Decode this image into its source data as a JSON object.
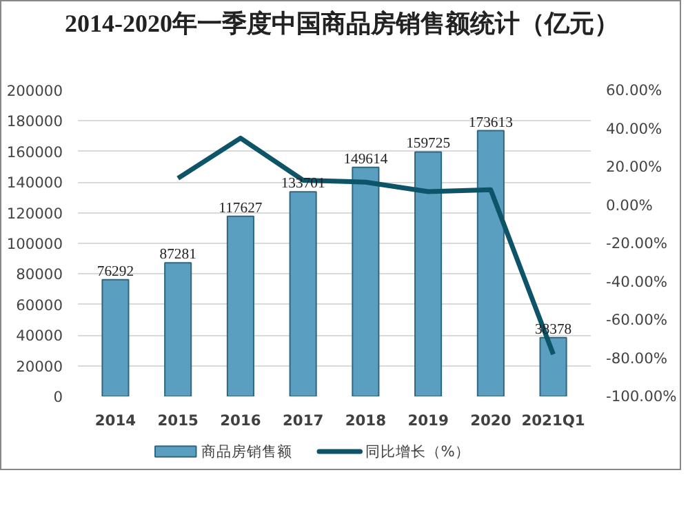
{
  "chart_data": {
    "type": "bar",
    "title": "2014-2020年一季度中国商品房销售额统计（亿元）",
    "categories": [
      "2014",
      "2015",
      "2016",
      "2017",
      "2018",
      "2019",
      "2020",
      "2021Q1"
    ],
    "series": [
      {
        "name": "商品房销售额",
        "color": "#5b9fc0",
        "values": [
          76292,
          87281,
          117627,
          133701,
          149614,
          159725,
          173613,
          38378
        ],
        "value_labels": [
          "76292",
          "87281",
          "117627",
          "133701",
          "149614",
          "159725",
          "173613",
          "38378"
        ]
      },
      {
        "name": "同比增长（%）",
        "color": "#0e5468",
        "type": "line",
        "axis": "y2",
        "values": [
          null,
          14,
          35,
          13,
          12,
          7,
          8,
          -78
        ]
      }
    ],
    "ylim": [
      0,
      200000
    ],
    "yticks": [
      0,
      20000,
      40000,
      60000,
      80000,
      100000,
      120000,
      140000,
      160000,
      180000,
      200000
    ],
    "y2lim": [
      -100,
      60
    ],
    "y2ticks": [
      {
        "value": -100,
        "label": "-100.00%"
      },
      {
        "value": -80,
        "label": "-80.00%"
      },
      {
        "value": -60,
        "label": "-60.00%"
      },
      {
        "value": -40,
        "label": "-40.00%"
      },
      {
        "value": -20,
        "label": "-20.00%"
      },
      {
        "value": 0,
        "label": "0.00%"
      },
      {
        "value": 20,
        "label": "20.00%"
      },
      {
        "value": 40,
        "label": "40.00%"
      },
      {
        "value": 60,
        "label": "60.00%"
      }
    ],
    "grid": "y",
    "legend": "bottom"
  }
}
